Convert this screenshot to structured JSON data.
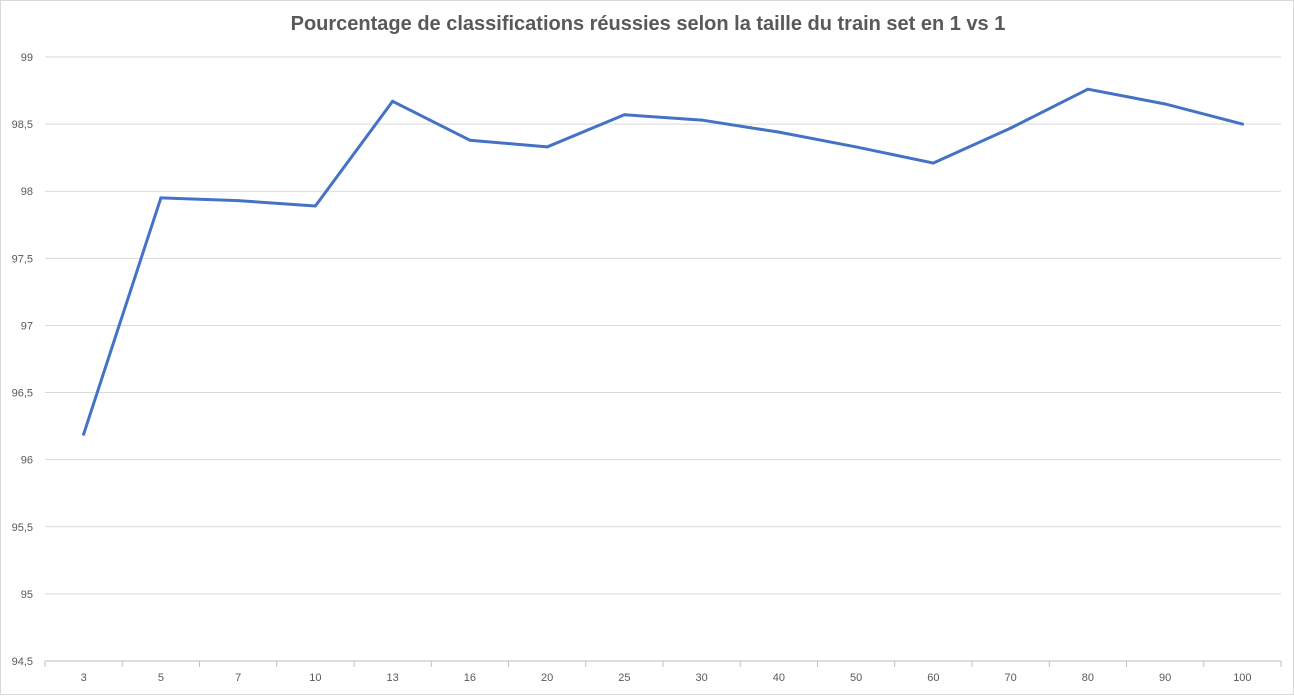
{
  "chart_data": {
    "type": "line",
    "title": "Pourcentage de classifications réussies selon la taille du train set en 1 vs 1",
    "xlabel": "",
    "ylabel": "",
    "categories": [
      "3",
      "5",
      "7",
      "10",
      "13",
      "16",
      "20",
      "25",
      "30",
      "40",
      "50",
      "60",
      "70",
      "80",
      "90",
      "100"
    ],
    "series": [
      {
        "values": [
          96.19,
          97.95,
          97.93,
          97.89,
          98.67,
          98.38,
          98.33,
          98.57,
          98.53,
          98.44,
          98.33,
          98.21,
          98.47,
          98.76,
          98.65,
          98.5
        ],
        "color": "#4472c4"
      }
    ],
    "ylim": [
      94.5,
      99
    ],
    "yticks": [
      94.5,
      95,
      95.5,
      96,
      96.5,
      97,
      97.5,
      98,
      98.5,
      99
    ],
    "ytick_labels": [
      "94,5",
      "95",
      "95,5",
      "96",
      "96,5",
      "97",
      "97,5",
      "98",
      "98,5",
      "99"
    ],
    "grid": true,
    "legend": "none",
    "colors": {
      "grid": "#d9d9d9",
      "axis": "#bfbfbf",
      "text": "#595959"
    }
  }
}
